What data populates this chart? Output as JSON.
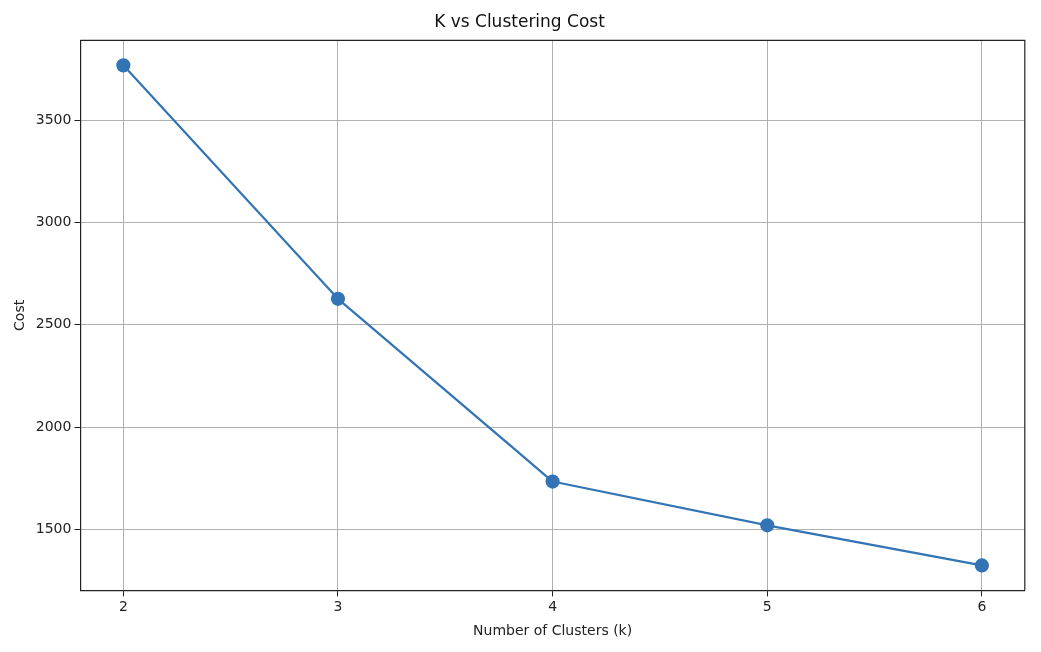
{
  "chart_data": {
    "type": "line",
    "title": "K vs Clustering Cost",
    "xlabel": "Number of Clusters (k)",
    "ylabel": "Cost",
    "x": [
      2,
      3,
      4,
      5,
      6
    ],
    "series": [
      {
        "color": "#3274b5",
        "values": [
          3768,
          2627,
          1734,
          1520,
          1324
        ]
      }
    ],
    "xlim": [
      1.8,
      6.2
    ],
    "xticks": [
      2,
      3,
      4,
      5,
      6
    ],
    "ylim": [
      1202,
      3890
    ],
    "yticks": [
      1500,
      2000,
      2500,
      3000,
      3500
    ],
    "grid": true,
    "marker": "circle",
    "line_style": "solid",
    "legend": false
  }
}
